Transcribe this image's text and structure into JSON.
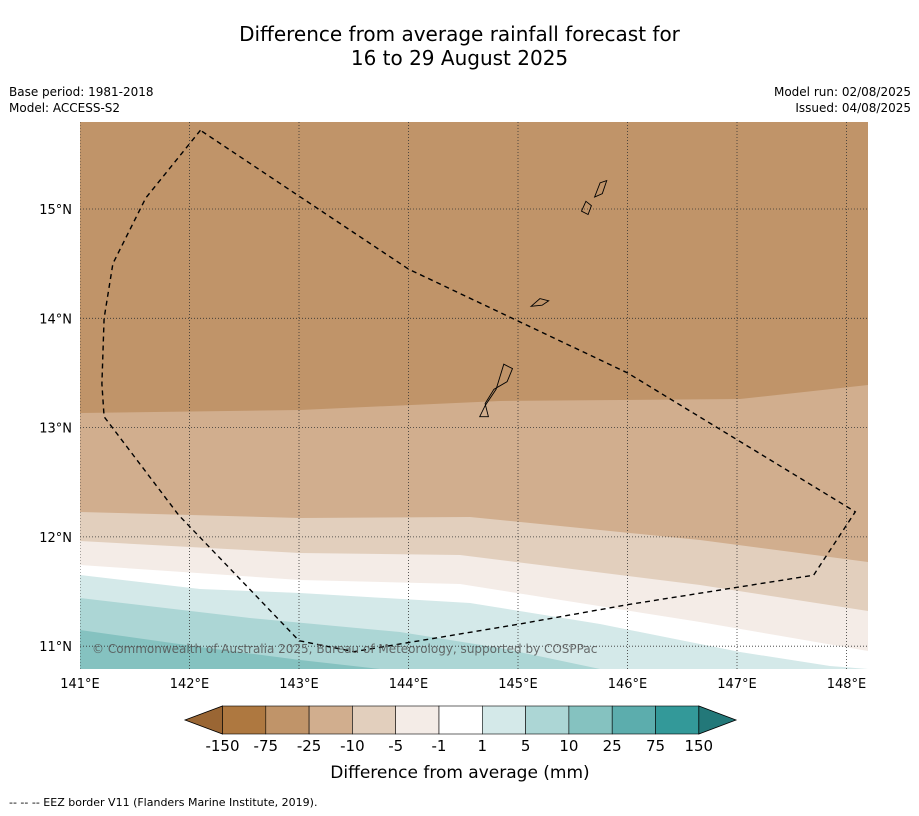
{
  "header": {
    "title_line1": "Difference from average rainfall forecast for",
    "title_line2": "16 to 29 August 2025",
    "base_period": "Base period: 1981-2018",
    "model": "Model: ACCESS-S2",
    "model_run": "Model run: 02/08/2025",
    "issued": "Issued: 04/08/2025"
  },
  "map": {
    "lat_labels": [
      "15°N",
      "14°N",
      "13°N",
      "12°N",
      "11°N"
    ],
    "lat_values": [
      15,
      14,
      13,
      12,
      11
    ],
    "lon_labels": [
      "141°E",
      "142°E",
      "143°E",
      "144°E",
      "145°E",
      "146°E",
      "147°E",
      "148°E"
    ],
    "lon_values": [
      141,
      142,
      143,
      144,
      145,
      146,
      147,
      148
    ],
    "copyright": "© Commonwealth of Australia 2025, Bureau of Meteorology, supported by COSPPac",
    "eez_border": [
      [
        142.1,
        15.72
      ],
      [
        141.6,
        15.1
      ],
      [
        141.3,
        14.5
      ],
      [
        141.22,
        14.0
      ],
      [
        141.2,
        13.4
      ],
      [
        141.22,
        13.1
      ],
      [
        141.9,
        12.2
      ],
      [
        143.0,
        11.05
      ],
      [
        143.5,
        10.95
      ],
      [
        145.0,
        11.2
      ],
      [
        146.0,
        11.38
      ],
      [
        147.7,
        11.65
      ],
      [
        148.08,
        12.23
      ],
      [
        146.0,
        13.5
      ],
      [
        144.0,
        14.45
      ],
      [
        142.1,
        15.72
      ]
    ],
    "islands": {
      "guam": [
        [
          144.65,
          13.1
        ],
        [
          144.7,
          13.2
        ],
        [
          144.8,
          13.35
        ],
        [
          144.87,
          13.58
        ],
        [
          144.95,
          13.54
        ],
        [
          144.9,
          13.42
        ],
        [
          144.78,
          13.35
        ],
        [
          144.7,
          13.22
        ],
        [
          144.73,
          13.1
        ],
        [
          144.65,
          13.1
        ]
      ],
      "rota": [
        [
          145.12,
          14.11
        ],
        [
          145.2,
          14.18
        ],
        [
          145.28,
          14.16
        ],
        [
          145.22,
          14.12
        ],
        [
          145.12,
          14.11
        ]
      ],
      "tinian": [
        [
          145.58,
          14.98
        ],
        [
          145.62,
          15.07
        ],
        [
          145.67,
          15.03
        ],
        [
          145.64,
          14.95
        ],
        [
          145.58,
          14.98
        ]
      ],
      "saipan": [
        [
          145.7,
          15.11
        ],
        [
          145.75,
          15.24
        ],
        [
          145.81,
          15.26
        ],
        [
          145.77,
          15.14
        ],
        [
          145.7,
          15.11
        ]
      ]
    }
  },
  "legend": {
    "tick_labels": [
      "-150",
      "-75",
      "-25",
      "-10",
      "-5",
      "-1",
      "1",
      "5",
      "10",
      "25",
      "75",
      "150"
    ],
    "colors": [
      "#9a6634",
      "#ae7840",
      "#c09469",
      "#d1ae8e",
      "#e2cfbd",
      "#f4ece7",
      "#ffffff",
      "#d4e9e9",
      "#acd6d5",
      "#85c2c0",
      "#5cadad",
      "#339999",
      "#237879"
    ],
    "label": "Difference from average (mm)"
  },
  "footnote": "--  --  -- EEZ border V11 (Flanders Marine Institute, 2019)."
}
